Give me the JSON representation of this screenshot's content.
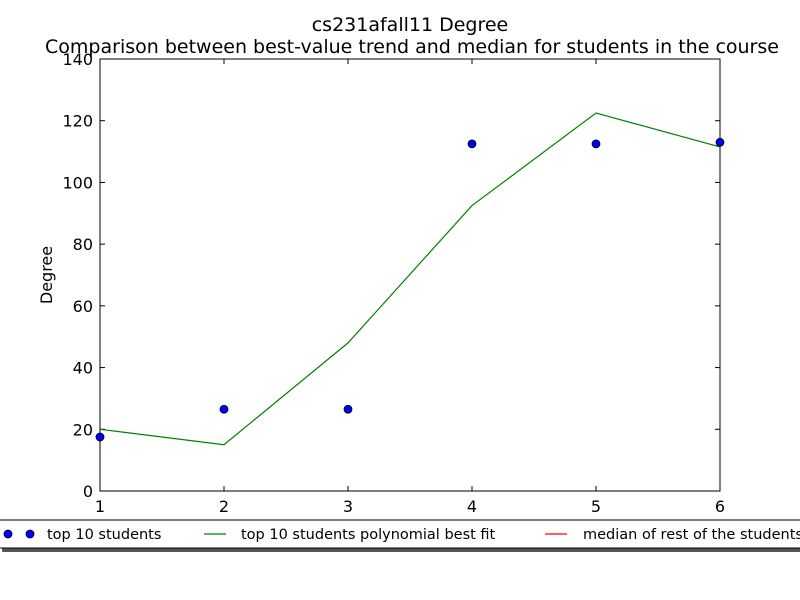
{
  "chart_data": {
    "type": "scatter",
    "title": "cs231afall11 Degree",
    "subtitle": "Comparison between best-value trend and median for students in the course",
    "xlabel": "",
    "ylabel": "Degree",
    "xlim": [
      1,
      6
    ],
    "ylim": [
      0,
      140
    ],
    "xticks": [
      1,
      2,
      3,
      4,
      5,
      6
    ],
    "yticks": [
      0,
      20,
      40,
      60,
      80,
      100,
      120,
      140
    ],
    "grid": false,
    "legend_position": "bottom",
    "series": [
      {
        "name": "top 10 students",
        "kind": "scatter",
        "color": "#0000ff",
        "x": [
          1,
          2,
          3,
          4,
          5,
          6
        ],
        "y": [
          17.5,
          26.5,
          26.5,
          112.5,
          112.5,
          113
        ]
      },
      {
        "name": "top 10 students polynomial best fit",
        "kind": "line",
        "color": "#008000",
        "x": [
          1,
          2,
          3,
          4,
          5,
          6
        ],
        "y": [
          20,
          15,
          48,
          92.5,
          122.5,
          111.5
        ]
      },
      {
        "name": "median of rest of the students",
        "kind": "line",
        "color": "#ff0000",
        "x": [],
        "y": []
      }
    ]
  }
}
